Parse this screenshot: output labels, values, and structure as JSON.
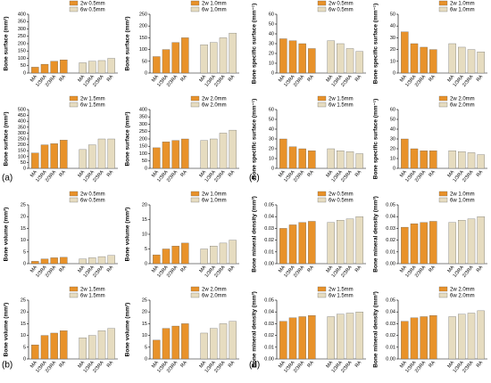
{
  "panel_labels": [
    "(a)",
    "(b)",
    "(c)",
    "(d)"
  ],
  "chart_data": [
    {
      "type": "bar",
      "ylabel": "Bone surface (mm²)",
      "categories": [
        "MA",
        "1/3RA",
        "2/3RA",
        "RA"
      ],
      "ylim": [
        0,
        400
      ],
      "yticks": [
        0,
        50,
        100,
        150,
        200,
        250,
        300,
        350,
        400
      ],
      "series": [
        {
          "name": "2w 0.5mm",
          "color": "#e8922a",
          "values": [
            40,
            60,
            80,
            90
          ]
        },
        {
          "name": "6w 0.5mm",
          "color": "#e6dcc0",
          "values": [
            70,
            80,
            85,
            100
          ]
        }
      ]
    },
    {
      "type": "bar",
      "ylabel": "Bone surface (mm²)",
      "categories": [
        "MA",
        "1/3RA",
        "2/3RA",
        "RA"
      ],
      "ylim": [
        0,
        250
      ],
      "yticks": [
        0,
        50,
        100,
        150,
        200,
        250
      ],
      "series": [
        {
          "name": "2w 1.0mm",
          "color": "#e8922a",
          "values": [
            70,
            100,
            130,
            150
          ]
        },
        {
          "name": "6w 1.0mm",
          "color": "#e6dcc0",
          "values": [
            120,
            130,
            150,
            170
          ]
        }
      ]
    },
    {
      "type": "bar",
      "ylabel": "Bone surface (mm²)",
      "categories": [
        "MA",
        "1/3RA",
        "2/3RA",
        "RA"
      ],
      "ylim": [
        0,
        500
      ],
      "yticks": [
        0,
        50,
        100,
        150,
        200,
        250,
        300,
        350,
        400,
        450,
        500
      ],
      "series": [
        {
          "name": "2w 1.5mm",
          "color": "#e8922a",
          "values": [
            130,
            200,
            210,
            240
          ]
        },
        {
          "name": "6w 1.5mm",
          "color": "#e6dcc0",
          "values": [
            160,
            200,
            250,
            250
          ]
        }
      ]
    },
    {
      "type": "bar",
      "ylabel": "Bone surface (mm²)",
      "categories": [
        "MA",
        "1/3RA",
        "2/3RA",
        "RA"
      ],
      "ylim": [
        0,
        400
      ],
      "yticks": [
        0,
        50,
        100,
        150,
        200,
        250,
        300,
        350,
        400
      ],
      "series": [
        {
          "name": "2w 2.0mm",
          "color": "#e8922a",
          "values": [
            140,
            180,
            190,
            200
          ]
        },
        {
          "name": "6w 2.0mm",
          "color": "#e6dcc0",
          "values": [
            190,
            200,
            240,
            260
          ]
        }
      ]
    },
    {
      "type": "bar",
      "ylabel": "Bone volume (mm³)",
      "categories": [
        "MA",
        "1/3RA",
        "2/3RA",
        "RA"
      ],
      "ylim": [
        0,
        25
      ],
      "yticks": [
        0,
        5,
        10,
        15,
        20,
        25
      ],
      "series": [
        {
          "name": "2w 0.5mm",
          "color": "#e8922a",
          "values": [
            1,
            2,
            2.5,
            2.7
          ]
        },
        {
          "name": "6w 0.5mm",
          "color": "#e6dcc0",
          "values": [
            2,
            2.5,
            3,
            3.5
          ]
        }
      ]
    },
    {
      "type": "bar",
      "ylabel": "Bone volume (mm³)",
      "categories": [
        "MA",
        "1/3RA",
        "2/3RA",
        "RA"
      ],
      "ylim": [
        0,
        20
      ],
      "yticks": [
        0,
        5,
        10,
        15,
        20
      ],
      "series": [
        {
          "name": "2w 1.0mm",
          "color": "#e8922a",
          "values": [
            3,
            5,
            6,
            7
          ]
        },
        {
          "name": "6w 1.0mm",
          "color": "#e6dcc0",
          "values": [
            5,
            6,
            7,
            8
          ]
        }
      ]
    },
    {
      "type": "bar",
      "ylabel": "Bone volume (mm³)",
      "categories": [
        "MA",
        "1/3RA",
        "2/3RA",
        "RA"
      ],
      "ylim": [
        0,
        25
      ],
      "yticks": [
        0,
        5,
        10,
        15,
        20,
        25
      ],
      "series": [
        {
          "name": "2w 1.5mm",
          "color": "#e8922a",
          "values": [
            6,
            10,
            11,
            12
          ]
        },
        {
          "name": "6w 1.5mm",
          "color": "#e6dcc0",
          "values": [
            9,
            10,
            12,
            13
          ]
        }
      ]
    },
    {
      "type": "bar",
      "ylabel": "Bone volume (mm³)",
      "categories": [
        "MA",
        "1/3RA",
        "2/3RA",
        "RA"
      ],
      "ylim": [
        0,
        25
      ],
      "yticks": [
        0,
        5,
        10,
        15,
        20,
        25
      ],
      "series": [
        {
          "name": "2w 2.0mm",
          "color": "#e8922a",
          "values": [
            8,
            13,
            14,
            15
          ]
        },
        {
          "name": "6w 2.0mm",
          "color": "#e6dcc0",
          "values": [
            11,
            13,
            15,
            16
          ]
        }
      ]
    },
    {
      "type": "bar",
      "ylabel": "Bone specific surface (mm⁻¹)",
      "categories": [
        "MA",
        "1/3RA",
        "2/3RA",
        "RA"
      ],
      "ylim": [
        0,
        60
      ],
      "yticks": [
        0,
        10,
        20,
        30,
        40,
        50,
        60
      ],
      "series": [
        {
          "name": "2w 0.5mm",
          "color": "#e8922a",
          "values": [
            35,
            33,
            30,
            25
          ]
        },
        {
          "name": "6w 0.5mm",
          "color": "#e6dcc0",
          "values": [
            33,
            30,
            25,
            22
          ]
        }
      ]
    },
    {
      "type": "bar",
      "ylabel": "Bone specific surface (mm⁻¹)",
      "categories": [
        "MA",
        "1/3RA",
        "2/3RA",
        "RA"
      ],
      "ylim": [
        0,
        50
      ],
      "yticks": [
        0,
        10,
        20,
        30,
        40,
        50
      ],
      "series": [
        {
          "name": "2w 1.0mm",
          "color": "#e8922a",
          "values": [
            35,
            25,
            22,
            20
          ]
        },
        {
          "name": "6w 1.0mm",
          "color": "#e6dcc0",
          "values": [
            25,
            22,
            20,
            18
          ]
        }
      ]
    },
    {
      "type": "bar",
      "ylabel": "Bone specific surface (mm⁻¹)",
      "categories": [
        "MA",
        "1/3RA",
        "2/3RA",
        "RA"
      ],
      "ylim": [
        0,
        60
      ],
      "yticks": [
        0,
        10,
        20,
        30,
        40,
        50,
        60
      ],
      "series": [
        {
          "name": "2w 1.5mm",
          "color": "#e8922a",
          "values": [
            30,
            22,
            20,
            18
          ]
        },
        {
          "name": "6w 1.5mm",
          "color": "#e6dcc0",
          "values": [
            20,
            18,
            17,
            15
          ]
        }
      ]
    },
    {
      "type": "bar",
      "ylabel": "Bone specific surface (mm⁻¹)",
      "categories": [
        "MA",
        "1/3RA",
        "2/3RA",
        "RA"
      ],
      "ylim": [
        0,
        60
      ],
      "yticks": [
        0,
        10,
        20,
        30,
        40,
        50,
        60
      ],
      "series": [
        {
          "name": "2w 2.0mm",
          "color": "#e8922a",
          "values": [
            30,
            20,
            18,
            18
          ]
        },
        {
          "name": "6w 2.0mm",
          "color": "#e6dcc0",
          "values": [
            18,
            17,
            16,
            14
          ]
        }
      ]
    },
    {
      "type": "bar",
      "ylabel": "Bone mineral density (mm³)",
      "categories": [
        "MA",
        "1/3RA",
        "2/3RA",
        "RA"
      ],
      "ylim": [
        0,
        0.05
      ],
      "yticks": [
        {
          "value": 0,
          "label": "0.00"
        },
        0.01,
        0.02,
        0.03,
        0.04,
        0.05
      ],
      "series": [
        {
          "name": "2w 0.5mm",
          "color": "#e8922a",
          "values": [
            0.03,
            0.033,
            0.035,
            0.036
          ]
        },
        {
          "name": "6w 0.5mm",
          "color": "#e6dcc0",
          "values": [
            0.035,
            0.037,
            0.038,
            0.04
          ]
        }
      ]
    },
    {
      "type": "bar",
      "ylabel": "Bone mineral density (mm³)",
      "categories": [
        "MA",
        "1/3RA",
        "2/3RA",
        "RA"
      ],
      "ylim": [
        0,
        0.05
      ],
      "yticks": [
        {
          "value": 0,
          "label": "0.00"
        },
        0.01,
        0.02,
        0.03,
        0.04,
        0.05
      ],
      "series": [
        {
          "name": "2w 1.0mm",
          "color": "#e8922a",
          "values": [
            0.031,
            0.034,
            0.035,
            0.036
          ]
        },
        {
          "name": "6w 1.0mm",
          "color": "#e6dcc0",
          "values": [
            0.035,
            0.037,
            0.038,
            0.04
          ]
        }
      ]
    },
    {
      "type": "bar",
      "ylabel": "Bone mineral density (mm³)",
      "categories": [
        "MA",
        "1/3RA",
        "2/3RA",
        "RA"
      ],
      "ylim": [
        0,
        0.05
      ],
      "yticks": [
        {
          "value": 0,
          "label": "0.00"
        },
        0.01,
        0.02,
        0.03,
        0.04,
        0.05
      ],
      "series": [
        {
          "name": "2w 1.5mm",
          "color": "#e8922a",
          "values": [
            0.032,
            0.035,
            0.036,
            0.037
          ]
        },
        {
          "name": "6w 1.5mm",
          "color": "#e6dcc0",
          "values": [
            0.036,
            0.038,
            0.039,
            0.04
          ]
        }
      ]
    },
    {
      "type": "bar",
      "ylabel": "Bone mineral density (mm³)",
      "categories": [
        "MA",
        "1/3RA",
        "2/3RA",
        "RA"
      ],
      "ylim": [
        0,
        0.05
      ],
      "yticks": [
        {
          "value": 0,
          "label": "0.00"
        },
        0.01,
        0.02,
        0.03,
        0.04,
        0.05
      ],
      "series": [
        {
          "name": "2w 2.0mm",
          "color": "#e8922a",
          "values": [
            0.032,
            0.035,
            0.036,
            0.037
          ]
        },
        {
          "name": "6w 2.0mm",
          "color": "#e6dcc0",
          "values": [
            0.036,
            0.038,
            0.039,
            0.041
          ]
        }
      ]
    }
  ]
}
